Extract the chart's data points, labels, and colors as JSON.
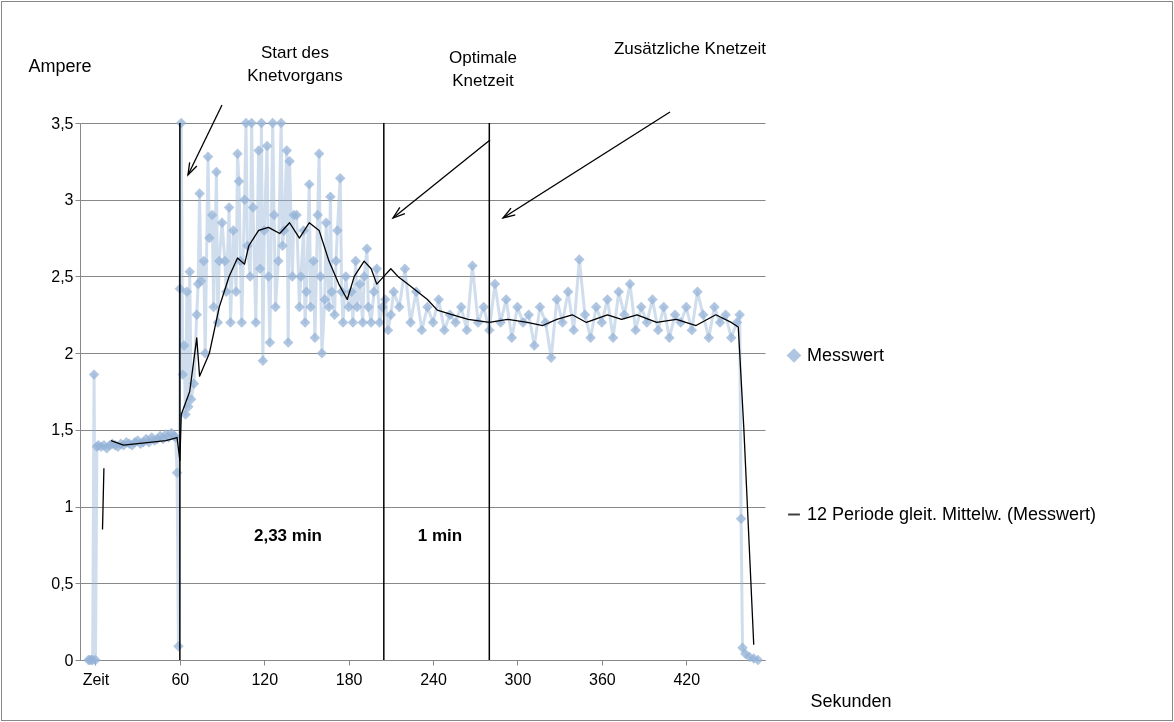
{
  "chart_data": {
    "type": "line",
    "xlabel": "Sekunden",
    "ylabel": "Ampere",
    "xlim": [
      -11,
      476
    ],
    "ylim": [
      0,
      3.5
    ],
    "xticks": [
      {
        "value": 0,
        "label": "Zeit"
      },
      60,
      120,
      180,
      240,
      300,
      360,
      420
    ],
    "yticks": [
      0,
      {
        "value": 0.5,
        "label": "0,5"
      },
      1,
      {
        "value": 1.5,
        "label": "1,5"
      },
      2,
      {
        "value": 2.5,
        "label": "2,5"
      },
      3,
      {
        "value": 3.5,
        "label": "3,5"
      }
    ],
    "grid": "y",
    "legend": "right",
    "series": [
      {
        "name": "Messwert",
        "type": "line",
        "marker": "diamond",
        "color": "#95b3d7",
        "x": [
          -5,
          -4,
          -3,
          -2,
          -1,
          0,
          1,
          2,
          4,
          6,
          8,
          10,
          12,
          14,
          16,
          18,
          20,
          22,
          24,
          26,
          28,
          30,
          32,
          34,
          36,
          38,
          40,
          42,
          44,
          46,
          48,
          50,
          52,
          54,
          56,
          57,
          58,
          59,
          60,
          61,
          62,
          63,
          64,
          65,
          66,
          67,
          68,
          70,
          72,
          73,
          74,
          75,
          77,
          78,
          80,
          81,
          83,
          84,
          86,
          87,
          88,
          90,
          92,
          93,
          95,
          96,
          98,
          100,
          101,
          102,
          103,
          104,
          106,
          107,
          108,
          110,
          111,
          112,
          114,
          116,
          117,
          118,
          119,
          120,
          122,
          123,
          124,
          126,
          127,
          128,
          130,
          132,
          133,
          134,
          136,
          137,
          138,
          140,
          141,
          143,
          145,
          146,
          148,
          149,
          150,
          152,
          153,
          155,
          156,
          158,
          159,
          160,
          161,
          163,
          164,
          166,
          167,
          168,
          170,
          171,
          172,
          174,
          175,
          176,
          178,
          180,
          182,
          183,
          185,
          186,
          188,
          190,
          191,
          193,
          194,
          196,
          198,
          200,
          202,
          204,
          206,
          208,
          210,
          212,
          216,
          220,
          224,
          228,
          232,
          236,
          240,
          244,
          248,
          252,
          256,
          260,
          264,
          268,
          272,
          276,
          280,
          284,
          288,
          292,
          296,
          300,
          304,
          308,
          312,
          316,
          320,
          324,
          328,
          332,
          336,
          340,
          344,
          348,
          352,
          356,
          360,
          364,
          368,
          372,
          376,
          380,
          384,
          388,
          392,
          396,
          400,
          404,
          408,
          412,
          416,
          420,
          424,
          428,
          432,
          436,
          440,
          444,
          448,
          452,
          456,
          458,
          459,
          460,
          462,
          465,
          468,
          471
        ],
        "values": [
          0,
          0,
          0,
          0,
          1.86,
          0,
          1.39,
          1.4,
          1.39,
          1.4,
          1.38,
          1.4,
          1.41,
          1.4,
          1.39,
          1.41,
          1.4,
          1.42,
          1.41,
          1.4,
          1.42,
          1.43,
          1.41,
          1.42,
          1.44,
          1.42,
          1.45,
          1.43,
          1.44,
          1.46,
          1.44,
          1.47,
          1.45,
          1.48,
          1.46,
          1.45,
          1.22,
          0.09,
          2.42,
          3.5,
          1.86,
          2.05,
          1.6,
          2.4,
          1.65,
          2.53,
          1.7,
          1.8,
          2.25,
          2.45,
          3.04,
          2.47,
          2.6,
          2.0,
          3.28,
          2.75,
          2.9,
          2.3,
          3.18,
          2.2,
          2.6,
          2.85,
          2.6,
          2.4,
          2.95,
          2.2,
          2.8,
          2.4,
          3.3,
          3.12,
          2.6,
          2.2,
          3.0,
          3.5,
          2.7,
          2.5,
          3.5,
          2.95,
          2.2,
          3.32,
          2.55,
          3.5,
          1.95,
          2.8,
          3.35,
          2.5,
          2.07,
          3.5,
          2.9,
          2.3,
          2.6,
          3.5,
          2.7,
          2.8,
          3.32,
          2.07,
          3.25,
          2.5,
          2.9,
          2.9,
          2.3,
          2.5,
          2.8,
          2.2,
          2.4,
          3.1,
          2.3,
          2.6,
          2.1,
          2.9,
          3.3,
          2.5,
          2.0,
          2.35,
          2.85,
          2.3,
          3.02,
          2.4,
          2.25,
          2.6,
          2.8,
          3.14,
          2.4,
          2.2,
          2.5,
          2.3,
          2.4,
          2.2,
          2.6,
          2.3,
          2.45,
          2.2,
          2.5,
          2.68,
          2.3,
          2.2,
          2.4,
          2.55,
          2.2,
          2.3,
          2.35,
          2.15,
          2.25,
          2.4,
          2.3,
          2.55,
          2.2,
          2.4,
          2.15,
          2.3,
          2.2,
          2.35,
          2.15,
          2.25,
          2.2,
          2.3,
          2.15,
          2.57,
          2.2,
          2.3,
          2.15,
          2.45,
          2.2,
          2.35,
          2.1,
          2.3,
          2.2,
          2.25,
          2.05,
          2.3,
          2.2,
          1.97,
          2.35,
          2.2,
          2.4,
          2.15,
          2.61,
          2.25,
          2.1,
          2.3,
          2.2,
          2.35,
          2.1,
          2.4,
          2.25,
          2.45,
          2.15,
          2.3,
          2.2,
          2.35,
          2.15,
          2.3,
          2.1,
          2.25,
          2.2,
          2.3,
          2.15,
          2.4,
          2.25,
          2.1,
          2.3,
          2.2,
          2.25,
          2.1,
          2.2,
          2.25,
          0.92,
          0.08,
          0.04,
          0.02,
          0.01,
          0
        ]
      },
      {
        "name": "12 Periode gleit. Mittelw. (Messwert)",
        "type": "line",
        "marker": "none",
        "color": "#000000",
        "x": [
          5,
          6,
          7,
          11,
          20,
          30,
          40,
          50,
          58,
          60,
          61,
          67,
          72,
          74,
          81,
          88,
          95,
          101,
          106,
          109,
          116,
          123,
          131,
          138,
          145,
          152,
          159,
          166,
          173,
          179,
          184,
          191,
          196,
          200,
          205,
          210,
          215,
          222,
          229,
          236,
          243,
          254,
          265,
          280,
          293,
          307,
          318,
          328,
          339,
          349,
          364,
          374,
          385,
          399,
          413,
          427,
          441,
          452,
          457,
          461,
          468
        ],
        "values": [
          0.85,
          1.25,
          null,
          1.43,
          1.4,
          1.41,
          1.42,
          1.43,
          1.45,
          1.3,
          1.6,
          1.75,
          2.1,
          1.85,
          2.0,
          2.3,
          2.5,
          2.62,
          2.58,
          2.7,
          2.8,
          2.82,
          2.78,
          2.85,
          2.75,
          2.85,
          2.8,
          2.6,
          2.45,
          2.35,
          2.5,
          2.6,
          2.55,
          2.45,
          2.5,
          2.55,
          2.5,
          2.45,
          2.4,
          2.35,
          2.28,
          2.25,
          2.22,
          2.2,
          2.22,
          2.2,
          2.18,
          2.22,
          2.25,
          2.2,
          2.25,
          2.22,
          2.25,
          2.2,
          2.22,
          2.18,
          2.25,
          2.2,
          2.17,
          1.5,
          0.1
        ]
      }
    ],
    "ref_lines": [
      {
        "axis": "x",
        "value": 60,
        "color": "#000000"
      },
      {
        "axis": "x",
        "value": 205,
        "color": "#000000"
      },
      {
        "axis": "x",
        "value": 280,
        "color": "#000000"
      }
    ],
    "annotations": [
      "Start des\nKnetvorgans",
      "Optimale\nKnetzeit",
      "Zusätzliche Knetzeit",
      "2,33 min",
      "1 min"
    ]
  }
}
